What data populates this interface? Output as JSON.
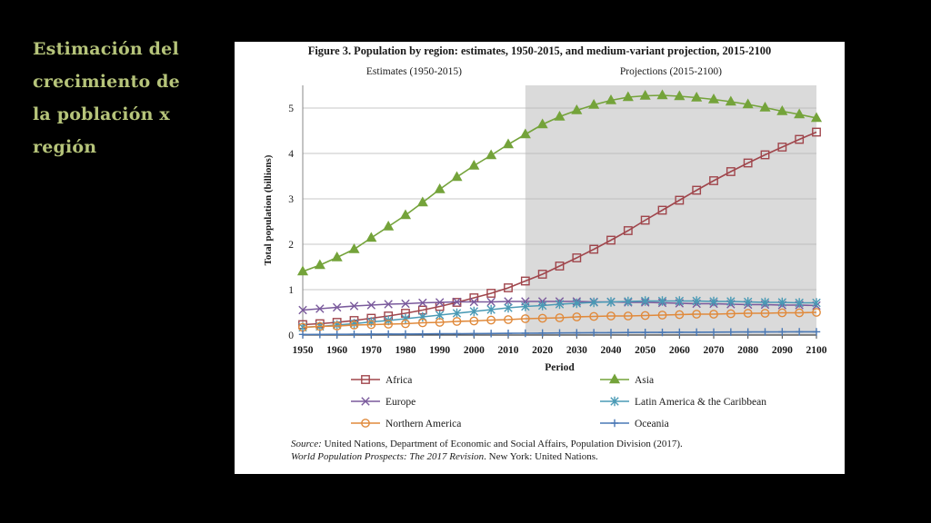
{
  "slide": {
    "title_lines": [
      "Estimación del",
      "crecimiento de",
      "la población x",
      "región"
    ]
  },
  "figure": {
    "title": "Figure 3. Population by region: estimates, 1950-2015, and medium-variant projection, 2015-2100",
    "source_prefix": "Source:",
    "source_line1": " United Nations, Department of Economic and Social Affairs, Population Division (2017).",
    "source_line2_italic": "World Population Prospects: The 2017 Revision",
    "source_line2_rest": ". New York: United Nations."
  },
  "chart_data": {
    "type": "line",
    "title": "Figure 3. Population by region: estimates, 1950-2015, and medium-variant projection, 2015-2100",
    "xlabel": "Period",
    "ylabel": "Total population (billions)",
    "xlim": [
      1950,
      2100
    ],
    "ylim": [
      0,
      5.5
    ],
    "x_ticks": [
      "1950",
      "1960",
      "1970",
      "1980",
      "1990",
      "2000",
      "2010",
      "2020",
      "2030",
      "2040",
      "2050",
      "2060",
      "2070",
      "2080",
      "2090",
      "2100"
    ],
    "y_ticks": [
      "0",
      "1",
      "2",
      "3",
      "4",
      "5"
    ],
    "regions": [
      {
        "label": "Estimates (1950-2015)",
        "from": 1950,
        "to": 2015,
        "shaded": false
      },
      {
        "label": "Projections (2015-2100)",
        "from": 2015,
        "to": 2100,
        "shaded": true,
        "color": "#dadada"
      }
    ],
    "legend_position": "bottom",
    "x": [
      1950,
      1955,
      1960,
      1965,
      1970,
      1975,
      1980,
      1985,
      1990,
      1995,
      2000,
      2005,
      2010,
      2015,
      2020,
      2025,
      2030,
      2035,
      2040,
      2045,
      2050,
      2055,
      2060,
      2065,
      2070,
      2075,
      2080,
      2085,
      2090,
      2095,
      2100
    ],
    "series": [
      {
        "name": "Africa",
        "color": "#a0464c",
        "marker": "square",
        "values": [
          0.23,
          0.25,
          0.28,
          0.32,
          0.37,
          0.42,
          0.48,
          0.55,
          0.63,
          0.72,
          0.82,
          0.92,
          1.04,
          1.19,
          1.34,
          1.52,
          1.7,
          1.89,
          2.09,
          2.3,
          2.53,
          2.75,
          2.97,
          3.19,
          3.4,
          3.6,
          3.79,
          3.97,
          4.14,
          4.31,
          4.47
        ]
      },
      {
        "name": "Asia",
        "color": "#74a33a",
        "marker": "triangle",
        "values": [
          1.4,
          1.54,
          1.71,
          1.89,
          2.14,
          2.39,
          2.64,
          2.92,
          3.21,
          3.48,
          3.73,
          3.96,
          4.2,
          4.42,
          4.64,
          4.81,
          4.95,
          5.07,
          5.17,
          5.24,
          5.27,
          5.28,
          5.26,
          5.23,
          5.19,
          5.14,
          5.08,
          5.01,
          4.93,
          4.86,
          4.78
        ]
      },
      {
        "name": "Europe",
        "color": "#7a5a9c",
        "marker": "x",
        "values": [
          0.55,
          0.58,
          0.61,
          0.64,
          0.66,
          0.68,
          0.69,
          0.71,
          0.72,
          0.73,
          0.73,
          0.73,
          0.74,
          0.74,
          0.74,
          0.74,
          0.74,
          0.73,
          0.73,
          0.72,
          0.72,
          0.71,
          0.7,
          0.69,
          0.69,
          0.68,
          0.67,
          0.67,
          0.66,
          0.66,
          0.65
        ]
      },
      {
        "name": "Latin America & the Caribbean",
        "color": "#4a9ab5",
        "marker": "asterisk",
        "values": [
          0.17,
          0.19,
          0.22,
          0.25,
          0.29,
          0.32,
          0.36,
          0.4,
          0.44,
          0.48,
          0.52,
          0.56,
          0.6,
          0.63,
          0.65,
          0.68,
          0.7,
          0.72,
          0.73,
          0.74,
          0.75,
          0.75,
          0.75,
          0.75,
          0.74,
          0.74,
          0.73,
          0.72,
          0.72,
          0.71,
          0.71
        ]
      },
      {
        "name": "Northern America",
        "color": "#e08a3c",
        "marker": "circle",
        "values": [
          0.17,
          0.19,
          0.2,
          0.22,
          0.23,
          0.24,
          0.25,
          0.27,
          0.28,
          0.3,
          0.31,
          0.33,
          0.34,
          0.36,
          0.37,
          0.38,
          0.4,
          0.41,
          0.42,
          0.42,
          0.43,
          0.44,
          0.45,
          0.46,
          0.46,
          0.47,
          0.48,
          0.48,
          0.49,
          0.49,
          0.5
        ]
      },
      {
        "name": "Oceania",
        "color": "#4a78b5",
        "marker": "plus",
        "values": [
          0.013,
          0.014,
          0.016,
          0.018,
          0.02,
          0.021,
          0.023,
          0.025,
          0.027,
          0.029,
          0.031,
          0.034,
          0.037,
          0.04,
          0.043,
          0.046,
          0.048,
          0.051,
          0.053,
          0.056,
          0.057,
          0.059,
          0.061,
          0.063,
          0.064,
          0.066,
          0.067,
          0.068,
          0.07,
          0.071,
          0.072
        ]
      }
    ]
  }
}
